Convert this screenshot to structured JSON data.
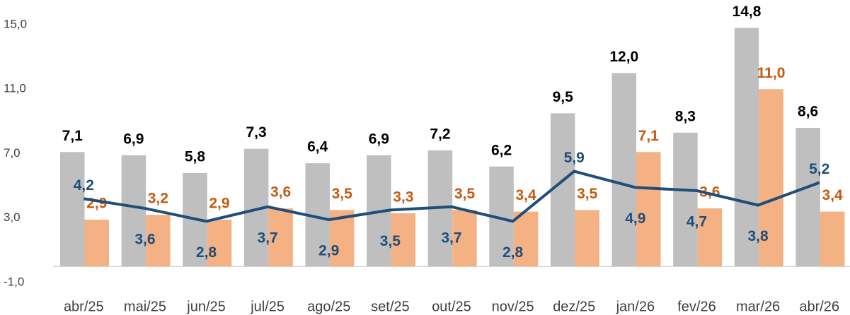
{
  "chart_data": {
    "type": "bar-line",
    "categories": [
      "abr/25",
      "mai/25",
      "jun/25",
      "jul/25",
      "ago/25",
      "set/25",
      "out/25",
      "nov/25",
      "dez/25",
      "jan/26",
      "fev/26",
      "mar/26",
      "abr/26"
    ],
    "series": [
      {
        "type": "bar",
        "color": "#bfbfbf",
        "label_color": "#000000",
        "values": [
          7.1,
          6.9,
          5.8,
          7.3,
          6.4,
          6.9,
          7.2,
          6.2,
          9.5,
          12.0,
          8.3,
          14.8,
          8.6
        ],
        "value_labels": [
          "7,1",
          "6,9",
          "5,8",
          "7,3",
          "6,4",
          "6,9",
          "7,2",
          "6,2",
          "9,5",
          "12,0",
          "8,3",
          "14,8",
          "8,6"
        ]
      },
      {
        "type": "bar",
        "color": "#f4b183",
        "label_color": "#c55a11",
        "values": [
          2.9,
          3.2,
          2.9,
          3.6,
          3.5,
          3.3,
          3.5,
          3.4,
          3.5,
          7.1,
          3.6,
          11.0,
          3.4
        ],
        "value_labels": [
          "2,9",
          "3,2",
          "2,9",
          "3,6",
          "3,5",
          "3,3",
          "3,5",
          "3,4",
          "3,5",
          "7,1",
          "3,6",
          "11,0",
          "3,4"
        ]
      },
      {
        "type": "line",
        "color": "#1f4e79",
        "label_color": "#1f4e79",
        "values": [
          4.2,
          3.6,
          2.8,
          3.7,
          2.9,
          3.5,
          3.7,
          2.8,
          5.9,
          4.9,
          4.7,
          3.8,
          5.2
        ],
        "value_labels": [
          "4,2",
          "3,6",
          "2,8",
          "3,7",
          "2,9",
          "3,5",
          "3,7",
          "2,8",
          "5,9",
          "4,9",
          "4,7",
          "3,8",
          "5,2"
        ]
      }
    ],
    "ylim": [
      -1,
      15
    ],
    "yticks": [
      {
        "value": -1,
        "label": "-1,0"
      },
      {
        "value": 3,
        "label": "3,0"
      },
      {
        "value": 7,
        "label": "7,0"
      },
      {
        "value": 11,
        "label": "11,0"
      },
      {
        "value": 15,
        "label": "15,0"
      }
    ],
    "grid": false
  }
}
